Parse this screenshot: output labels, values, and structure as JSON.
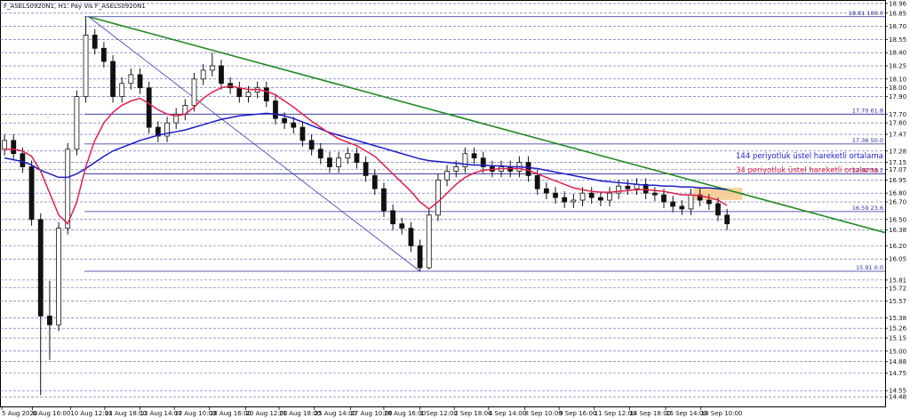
{
  "chart_data": {
    "type": "candlestick",
    "title": "F_ASELS0920N1, H1:  Pay Vis F_ASELS0920N1",
    "open": [
      17.3,
      17.4,
      17.25,
      17.1,
      16.5,
      15.4,
      15.3,
      16.4,
      17.3,
      17.9,
      18.6,
      18.45,
      18.3,
      17.9,
      18.05,
      18.15,
      18.0,
      17.55,
      17.45,
      17.6,
      17.7,
      17.8,
      18.1,
      18.2,
      18.25,
      18.05,
      18.0,
      17.9,
      17.95,
      18.0,
      17.85,
      17.65,
      17.6,
      17.55,
      17.4,
      17.3,
      17.2,
      17.1,
      17.2,
      17.25,
      17.15,
      17.0,
      16.85,
      16.6,
      16.45,
      16.4,
      16.2,
      15.95,
      16.55,
      16.95,
      17.05,
      17.1,
      17.25,
      17.2,
      17.1,
      17.05,
      17.1,
      17.05,
      17.15,
      17.0,
      16.85,
      16.8,
      16.75,
      16.7,
      16.72,
      16.8,
      16.75,
      16.72,
      16.8,
      16.88,
      16.85,
      16.9,
      16.8,
      16.78,
      16.7,
      16.65,
      16.62,
      16.78,
      16.72,
      16.68,
      16.55
    ],
    "high": [
      17.47,
      17.47,
      17.32,
      17.17,
      16.57,
      15.8,
      16.47,
      17.37,
      17.97,
      18.81,
      18.67,
      18.52,
      18.37,
      18.12,
      18.22,
      18.22,
      18.07,
      17.62,
      17.67,
      17.77,
      17.87,
      18.17,
      18.27,
      18.4,
      18.32,
      18.12,
      18.07,
      18.02,
      18.07,
      18.07,
      17.92,
      17.72,
      17.67,
      17.62,
      17.47,
      17.37,
      17.27,
      17.27,
      17.32,
      17.32,
      17.22,
      17.07,
      16.92,
      16.67,
      16.52,
      16.47,
      16.27,
      16.62,
      17.02,
      17.12,
      17.17,
      17.32,
      17.32,
      17.27,
      17.17,
      17.17,
      17.17,
      17.22,
      17.22,
      17.07,
      16.92,
      16.87,
      16.82,
      16.79,
      16.87,
      16.87,
      16.82,
      16.87,
      16.95,
      16.95,
      16.97,
      16.97,
      16.87,
      16.85,
      16.77,
      16.72,
      16.85,
      16.85,
      16.79,
      16.75,
      16.62
    ],
    "low": [
      17.23,
      17.18,
      17.03,
      16.43,
      14.5,
      14.9,
      15.23,
      16.33,
      17.23,
      17.83,
      18.38,
      18.23,
      17.83,
      17.83,
      17.98,
      17.93,
      17.48,
      17.38,
      17.38,
      17.53,
      17.63,
      17.73,
      18.03,
      18.13,
      17.98,
      17.93,
      17.83,
      17.83,
      17.88,
      17.78,
      17.58,
      17.53,
      17.48,
      17.33,
      17.23,
      17.13,
      17.03,
      17.03,
      17.13,
      17.08,
      16.93,
      16.78,
      16.53,
      16.38,
      16.33,
      16.13,
      15.91,
      15.93,
      16.48,
      16.88,
      16.98,
      17.03,
      17.13,
      17.03,
      16.98,
      16.98,
      16.98,
      16.98,
      16.93,
      16.78,
      16.73,
      16.68,
      16.63,
      16.63,
      16.65,
      16.68,
      16.65,
      16.65,
      16.73,
      16.78,
      16.78,
      16.73,
      16.71,
      16.63,
      16.58,
      16.55,
      16.55,
      16.65,
      16.61,
      16.48,
      16.38
    ],
    "close": [
      17.4,
      17.25,
      17.1,
      16.5,
      15.4,
      15.3,
      16.4,
      17.3,
      17.9,
      18.6,
      18.45,
      18.3,
      17.9,
      18.05,
      18.15,
      18.0,
      17.55,
      17.45,
      17.6,
      17.7,
      17.8,
      18.1,
      18.2,
      18.25,
      18.05,
      18.0,
      17.9,
      17.95,
      18.0,
      17.85,
      17.65,
      17.6,
      17.55,
      17.4,
      17.3,
      17.2,
      17.1,
      17.2,
      17.25,
      17.15,
      17.0,
      16.85,
      16.6,
      16.45,
      16.4,
      16.2,
      15.95,
      16.55,
      16.95,
      17.05,
      17.1,
      17.25,
      17.2,
      17.1,
      17.05,
      17.1,
      17.05,
      17.15,
      17.0,
      16.85,
      16.8,
      16.75,
      16.7,
      16.72,
      16.8,
      16.75,
      16.72,
      16.8,
      16.88,
      16.85,
      16.9,
      16.8,
      16.78,
      16.7,
      16.65,
      16.62,
      16.78,
      16.72,
      16.68,
      16.55,
      16.45
    ],
    "candle_color": "#111111",
    "series": [
      {
        "name": "144 periyotluk üstel hareketli ortalama",
        "color": "#1c1cc8",
        "values": [
          17.2,
          17.18,
          17.16,
          17.12,
          17.06,
          17.02,
          16.98,
          16.98,
          17.02,
          17.08,
          17.15,
          17.22,
          17.28,
          17.32,
          17.36,
          17.4,
          17.43,
          17.46,
          17.48,
          17.5,
          17.52,
          17.55,
          17.58,
          17.61,
          17.64,
          17.66,
          17.68,
          17.69,
          17.7,
          17.71,
          17.7,
          17.68,
          17.65,
          17.61,
          17.57,
          17.53,
          17.49,
          17.46,
          17.43,
          17.4,
          17.37,
          17.34,
          17.31,
          17.28,
          17.25,
          17.22,
          17.19,
          17.17,
          17.16,
          17.15,
          17.14,
          17.13,
          17.12,
          17.12,
          17.11,
          17.11,
          17.1,
          17.1,
          17.09,
          17.08,
          17.06,
          17.04,
          17.02,
          17.0,
          16.98,
          16.96,
          16.94,
          16.93,
          16.92,
          16.91,
          16.9,
          16.89,
          16.89,
          16.88,
          16.88,
          16.87,
          16.87,
          16.86,
          16.86,
          16.85,
          16.84
        ]
      },
      {
        "name": "34 periyotluk üstel hareketli ortalama",
        "color": "#e0204a",
        "values": [
          17.3,
          17.3,
          17.28,
          17.22,
          17.05,
          16.8,
          16.55,
          16.45,
          16.7,
          17.1,
          17.4,
          17.6,
          17.72,
          17.8,
          17.85,
          17.88,
          17.82,
          17.75,
          17.7,
          17.68,
          17.7,
          17.78,
          17.88,
          17.95,
          18.0,
          18.02,
          18.0,
          17.98,
          17.98,
          17.96,
          17.92,
          17.85,
          17.78,
          17.7,
          17.62,
          17.55,
          17.48,
          17.42,
          17.38,
          17.34,
          17.28,
          17.22,
          17.12,
          17.02,
          16.92,
          16.82,
          16.7,
          16.62,
          16.7,
          16.8,
          16.9,
          16.98,
          17.03,
          17.06,
          17.07,
          17.08,
          17.08,
          17.08,
          17.06,
          17.02,
          16.98,
          16.94,
          16.9,
          16.86,
          16.84,
          16.82,
          16.81,
          16.81,
          16.82,
          16.83,
          16.84,
          16.84,
          16.83,
          16.82,
          16.8,
          16.78,
          16.78,
          16.77,
          16.75,
          16.72,
          16.66
        ]
      }
    ],
    "xlim": [
      -0.5,
      97.5
    ],
    "ylim": [
      14.36,
      19.0
    ],
    "xticks": [
      {
        "value": -0.3,
        "label": "5 Aug 2020"
      },
      {
        "value": 3.1,
        "label": "6 Aug 16:00"
      },
      {
        "value": 7.3,
        "label": "10 Aug 12:00"
      },
      {
        "value": 11.1,
        "label": "11 Aug 18:00"
      },
      {
        "value": 15.0,
        "label": "13 Aug 14:00"
      },
      {
        "value": 18.8,
        "label": "17 Aug 10:00"
      },
      {
        "value": 22.7,
        "label": "18 Aug 16:00"
      },
      {
        "value": 26.7,
        "label": "20 Aug 12:00"
      },
      {
        "value": 30.4,
        "label": "21 Aug 18:00"
      },
      {
        "value": 34.3,
        "label": "25 Aug 14:00"
      },
      {
        "value": 38.3,
        "label": "27 Aug 10:00"
      },
      {
        "value": 42.0,
        "label": "28 Aug 16:00"
      },
      {
        "value": 46.0,
        "label": "1 Sep 12:00"
      },
      {
        "value": 49.8,
        "label": "2 Sep 18:00"
      },
      {
        "value": 53.6,
        "label": "4 Sep 14:00"
      },
      {
        "value": 57.6,
        "label": "8 Sep 10:00"
      },
      {
        "value": 61.4,
        "label": "9 Sep 16:00"
      },
      {
        "value": 65.3,
        "label": "11 Sep 12:00"
      },
      {
        "value": 69.2,
        "label": "14 Sep 18:00"
      },
      {
        "value": 73.2,
        "label": "16 Sep 14:00"
      },
      {
        "value": 77.1,
        "label": "18 Sep 10:00"
      }
    ],
    "yticks": [
      18.96,
      18.85,
      {
        "value": 18.7,
        "label": "18.70"
      },
      18.55,
      {
        "value": 18.4,
        "label": "18.40"
      },
      18.25,
      {
        "value": 18.1,
        "label": "18.10"
      },
      {
        "value": 18,
        "label": "18.00"
      },
      {
        "value": 17.9,
        "label": "17.90"
      },
      {
        "value": 17.7,
        "label": "17.70"
      },
      {
        "value": 17.6,
        "label": "17.60"
      },
      17.47,
      17.28,
      17.15,
      17.07,
      16.95,
      {
        "value": 16.8,
        "label": "16.80"
      },
      {
        "value": 16.7,
        "label": "16.70"
      },
      {
        "value": 16.5,
        "label": "16.50"
      },
      16.38,
      {
        "value": 16.2,
        "label": "16.20"
      },
      16.05,
      15.81,
      15.72,
      15.57,
      15.38,
      15.26,
      15.15,
      {
        "value": 15,
        "label": "15.00"
      },
      14.88,
      14.75,
      14.55,
      14.48
    ],
    "grid": true,
    "fib_levels": [
      {
        "value": 18.81,
        "label": "18.81 100.0"
      },
      {
        "value": 17.7,
        "label": "17.70 61.8"
      },
      {
        "value": 17.36,
        "label": "17.36 50.0"
      },
      {
        "value": 17.02,
        "label": "17.02 38.2"
      },
      {
        "value": 16.59,
        "label": "16.59 23.6"
      },
      {
        "value": 15.91,
        "label": "15.91 0.0"
      }
    ],
    "fib_color": "#2a2a9a",
    "trendlines": [
      {
        "color": "#1f8a1f",
        "x": [
          9.3,
          97.5
        ],
        "y": [
          18.81,
          16.35
        ]
      },
      {
        "color": "#3a3ab0",
        "x": [
          9.3,
          46
        ],
        "y": [
          18.81,
          15.91
        ]
      }
    ],
    "zone": {
      "color": "#f7c98a",
      "x": [
        76.3,
        81.7
      ],
      "y": [
        16.72,
        16.86
      ]
    }
  }
}
